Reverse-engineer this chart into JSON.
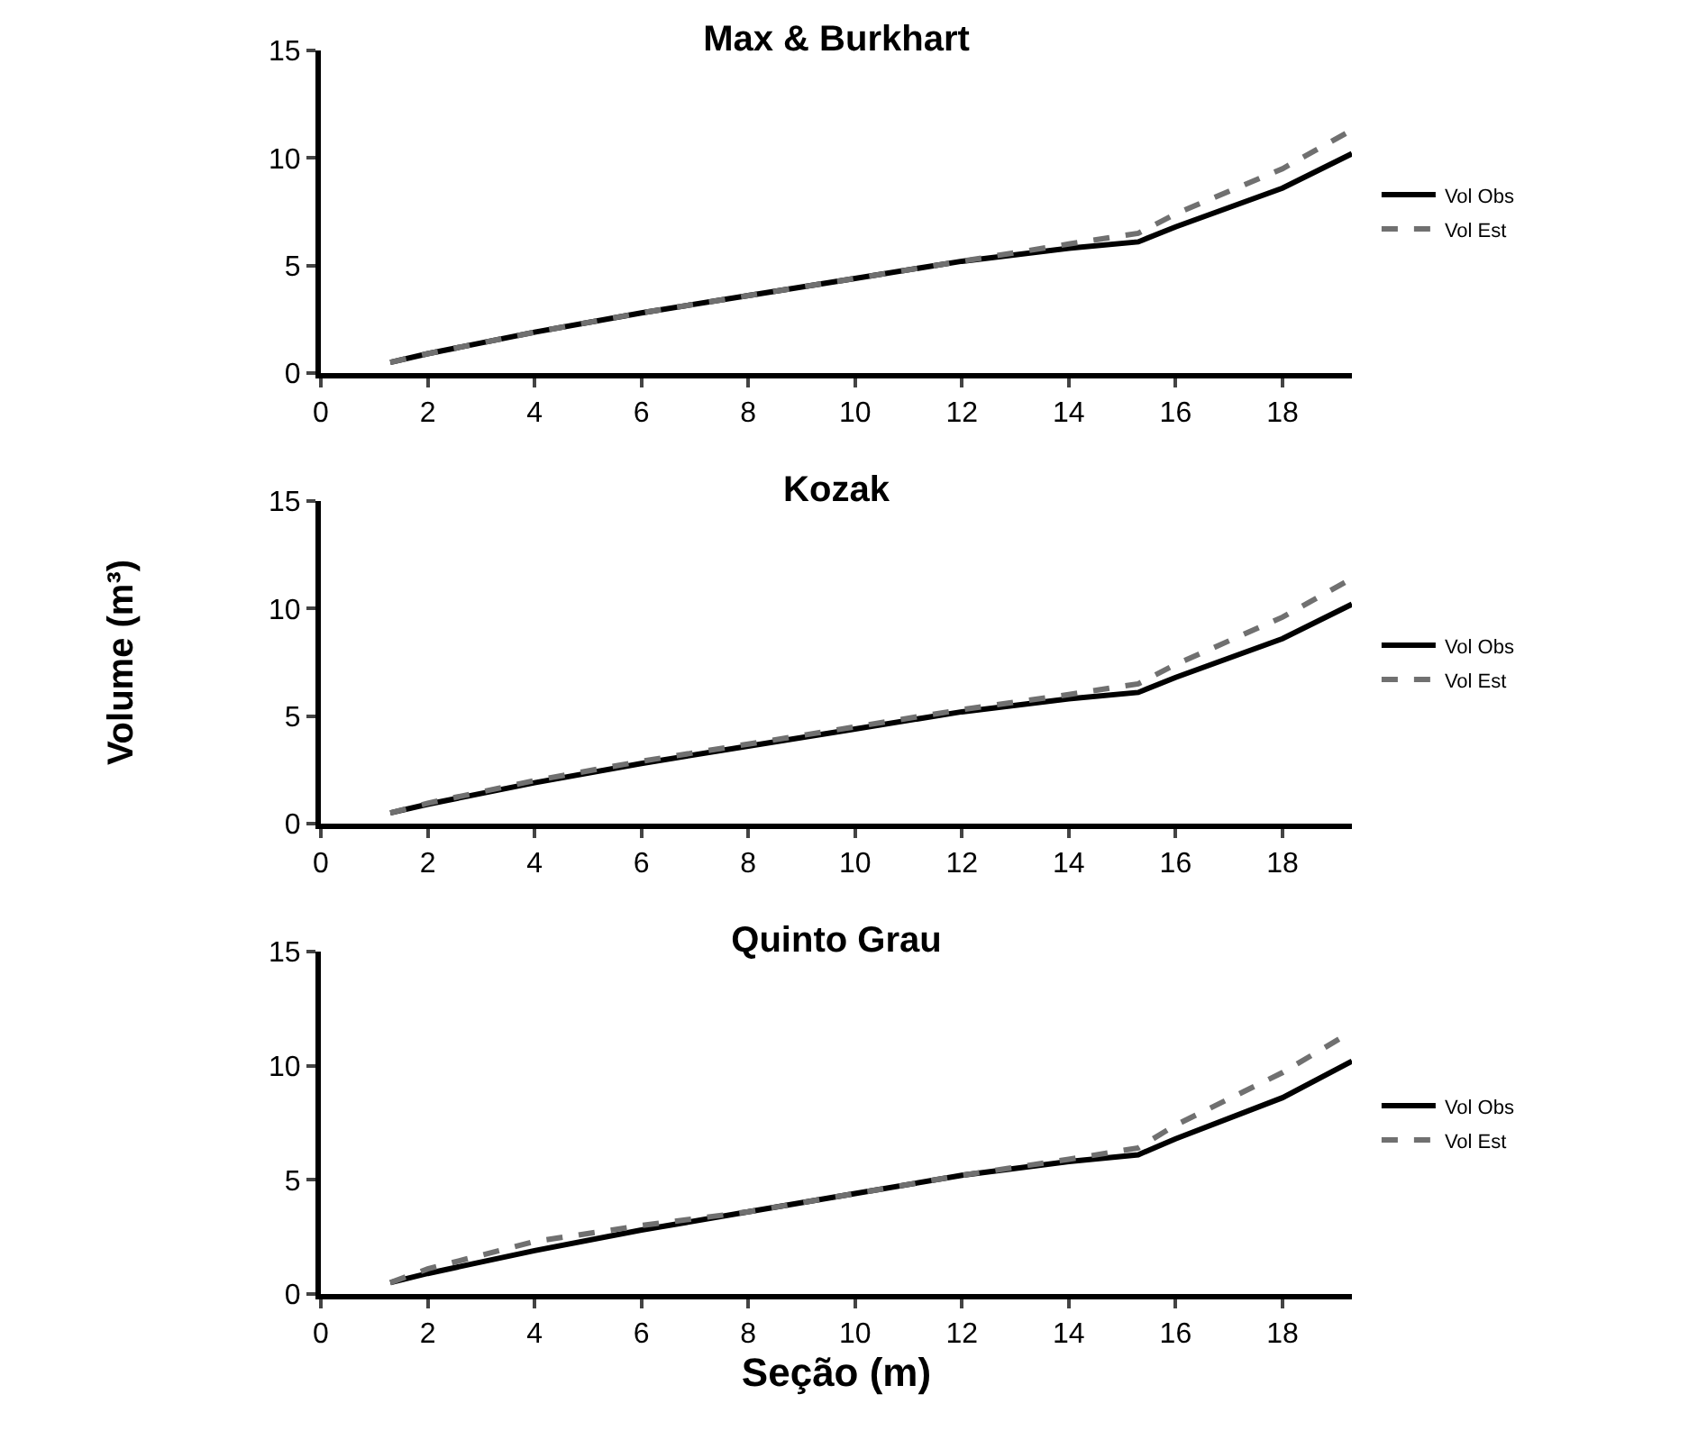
{
  "chart_data": [
    {
      "type": "line",
      "title": "Max & Burkhart",
      "x": [
        1.3,
        2,
        4,
        6,
        8,
        10,
        12,
        14,
        15.3,
        16,
        18,
        19.3
      ],
      "xlim": [
        0,
        19.3
      ],
      "xticks": [
        0,
        2,
        4,
        6,
        8,
        10,
        12,
        14,
        16,
        18
      ],
      "ylim": [
        0,
        15
      ],
      "yticks": [
        0,
        5,
        10,
        15
      ],
      "grid": false,
      "legend": "right",
      "tick_labels": true,
      "series": [
        {
          "name": "Vol Obs",
          "color": "#000000",
          "line_style": "solid",
          "values": [
            0.5,
            0.9,
            1.9,
            2.8,
            3.6,
            4.4,
            5.2,
            5.8,
            6.1,
            6.8,
            8.6,
            10.2
          ]
        },
        {
          "name": "Vol Est",
          "color": "#707070",
          "line_style": "dashed",
          "values": [
            0.5,
            0.9,
            1.9,
            2.8,
            3.6,
            4.4,
            5.2,
            6.0,
            6.5,
            7.4,
            9.5,
            11.3
          ]
        }
      ]
    },
    {
      "type": "line",
      "title": "Kozak",
      "ylabel": "Volume (m³)",
      "x": [
        1.3,
        2,
        4,
        6,
        8,
        10,
        12,
        14,
        15.3,
        16,
        18,
        19.3
      ],
      "xlim": [
        0,
        19.3
      ],
      "xticks": [
        0,
        2,
        4,
        6,
        8,
        10,
        12,
        14,
        16,
        18
      ],
      "ylim": [
        0,
        15
      ],
      "yticks": [
        0,
        5,
        10,
        15
      ],
      "grid": false,
      "legend": "right",
      "series": [
        {
          "name": "Vol Obs",
          "color": "#000000",
          "line_style": "solid",
          "values": [
            0.5,
            0.9,
            1.9,
            2.8,
            3.6,
            4.4,
            5.2,
            5.8,
            6.1,
            6.8,
            8.6,
            10.2
          ]
        },
        {
          "name": "Vol Est",
          "color": "#707070",
          "line_style": "dashed",
          "values": [
            0.5,
            0.95,
            2.0,
            2.9,
            3.7,
            4.5,
            5.3,
            6.0,
            6.5,
            7.4,
            9.6,
            11.4
          ]
        }
      ]
    },
    {
      "type": "line",
      "title": "Quinto Grau",
      "xlabel": "Seção (m)",
      "x": [
        1.3,
        2,
        4,
        6,
        8,
        10,
        12,
        14,
        15.3,
        16,
        18,
        19.3
      ],
      "xlim": [
        0,
        19.3
      ],
      "xticks": [
        0,
        2,
        4,
        6,
        8,
        10,
        12,
        14,
        16,
        18
      ],
      "ylim": [
        0,
        15
      ],
      "yticks": [
        0,
        5,
        10,
        15
      ],
      "grid": false,
      "legend": "right",
      "series": [
        {
          "name": "Vol Obs",
          "color": "#000000",
          "line_style": "solid",
          "values": [
            0.5,
            0.9,
            1.9,
            2.8,
            3.6,
            4.4,
            5.2,
            5.8,
            6.1,
            6.8,
            8.6,
            10.2
          ]
        },
        {
          "name": "Vol Est",
          "color": "#707070",
          "line_style": "dashed",
          "values": [
            0.5,
            1.1,
            2.3,
            3.0,
            3.6,
            4.4,
            5.2,
            5.9,
            6.4,
            7.4,
            9.7,
            11.5
          ]
        }
      ]
    }
  ]
}
